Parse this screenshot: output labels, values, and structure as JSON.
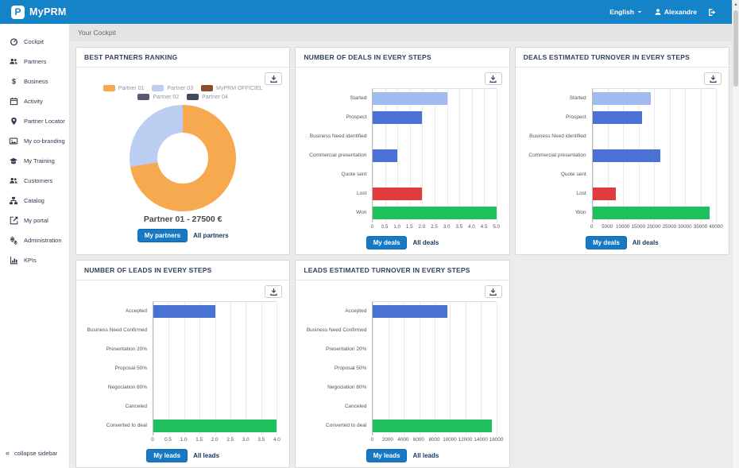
{
  "header": {
    "brand": "MyPRM",
    "language_label": "English",
    "user_name": "Alexandre"
  },
  "breadcrumb": "Your Cockpit",
  "sidebar": {
    "items": [
      {
        "icon": "gauge-icon",
        "label": "Cockpit"
      },
      {
        "icon": "users-icon",
        "label": "Partners"
      },
      {
        "icon": "dollar-icon",
        "label": "Business"
      },
      {
        "icon": "calendar-icon",
        "label": "Activity"
      },
      {
        "icon": "map-marker-icon",
        "label": "Partner Locator"
      },
      {
        "icon": "images-icon",
        "label": "My co-branding"
      },
      {
        "icon": "graduation-cap-icon",
        "label": "My Training"
      },
      {
        "icon": "users-icon",
        "label": "Customers"
      },
      {
        "icon": "sitemap-icon",
        "label": "Catalog"
      },
      {
        "icon": "external-link-icon",
        "label": "My portal"
      },
      {
        "icon": "gears-icon",
        "label": "Administration"
      },
      {
        "icon": "bar-chart-icon",
        "label": "KPIs"
      }
    ],
    "collapse_label": "collapse sidebar"
  },
  "chart_data": [
    {
      "type": "pie",
      "title": "BEST PARTNERS RANKING",
      "series": [
        {
          "name": "Partner 01",
          "value": 27500,
          "color": "#f6a94f"
        },
        {
          "name": "Partner 03",
          "value": 10500,
          "color": "#bccdf2"
        },
        {
          "name": "MyPRM OFFICIEL",
          "value": 0,
          "color": "#8c4e2a"
        },
        {
          "name": "Partner 02",
          "value": 0,
          "color": "#5d5873"
        },
        {
          "name": "Partner 04",
          "value": 0,
          "color": "#434a59"
        }
      ],
      "center_label": "Partner 01 - 27500 €",
      "legend_position": "top",
      "buttons": {
        "primary": "My partners",
        "secondary": "All partners"
      }
    },
    {
      "type": "bar",
      "title": "NUMBER OF DEALS IN EVERY STEPS",
      "categories": [
        "Started",
        "Prospect",
        "Business Need identified",
        "Commercial presentation",
        "Quote sent",
        "Lost",
        "Won"
      ],
      "values": [
        3,
        2,
        0,
        1,
        0,
        2,
        5
      ],
      "colors": [
        "#9fbbef",
        "#4a72d4",
        "#4a72d4",
        "#4a72d4",
        "#4a72d4",
        "#e23b3b",
        "#1fc05e"
      ],
      "xlim": [
        0,
        5
      ],
      "ticks": [
        "0",
        "0.5",
        "1.0",
        "1.5",
        "2.0",
        "2.5",
        "3.0",
        "3.5",
        "4.0",
        "4.5",
        "5.0"
      ],
      "grid": true,
      "buttons": {
        "primary": "My deals",
        "secondary": "All deals"
      }
    },
    {
      "type": "bar",
      "title": "DEALS ESTIMATED TURNOVER IN EVERY STEPS",
      "categories": [
        "Started",
        "Prospect",
        "Business Need identified",
        "Commercial presentation",
        "Quote sent",
        "Lost",
        "Won"
      ],
      "values": [
        19000,
        16000,
        0,
        22000,
        0,
        7500,
        38000
      ],
      "colors": [
        "#9fbbef",
        "#4a72d4",
        "#4a72d4",
        "#4a72d4",
        "#4a72d4",
        "#e23b3b",
        "#1fc05e"
      ],
      "xlim": [
        0,
        40000
      ],
      "ticks": [
        "0",
        "5000",
        "10000",
        "15000",
        "20000",
        "25000",
        "30000",
        "35000",
        "40000"
      ],
      "grid": true,
      "buttons": {
        "primary": "My deals",
        "secondary": "All deals"
      }
    },
    {
      "type": "bar",
      "title": "NUMBER OF LEADS IN EVERY STEPS",
      "categories": [
        "Accepted",
        "Business Need Confirmed",
        "Presentation 20%",
        "Proposal 50%",
        "Negociation 80%",
        "Canceled",
        "Converted to deal"
      ],
      "values": [
        2,
        0,
        0,
        0,
        0,
        0,
        4
      ],
      "colors": [
        "#4a72d4",
        "#4a72d4",
        "#4a72d4",
        "#4a72d4",
        "#4a72d4",
        "#e23b3b",
        "#1fc05e"
      ],
      "xlim": [
        0,
        4
      ],
      "ticks": [
        "0",
        "0.5",
        "1.0",
        "1.5",
        "2.0",
        "2.5",
        "3.0",
        "3.5",
        "4.0"
      ],
      "grid": true,
      "buttons": {
        "primary": "My leads",
        "secondary": "All leads"
      }
    },
    {
      "type": "bar",
      "title": "LEADS ESTIMATED TURNOVER IN EVERY STEPS",
      "categories": [
        "Accepted",
        "Business Need Confirmed",
        "Presentation 20%",
        "Proposal 50%",
        "Negociation 80%",
        "Canceled",
        "Converted to deal"
      ],
      "values": [
        9700,
        0,
        0,
        0,
        0,
        0,
        15400
      ],
      "colors": [
        "#4a72d4",
        "#4a72d4",
        "#4a72d4",
        "#4a72d4",
        "#4a72d4",
        "#e23b3b",
        "#1fc05e"
      ],
      "xlim": [
        0,
        16000
      ],
      "ticks": [
        "0",
        "2000",
        "4000",
        "6000",
        "8000",
        "10000",
        "12000",
        "14000",
        "16000"
      ],
      "grid": true,
      "buttons": {
        "primary": "My leads",
        "secondary": "All leads"
      }
    }
  ],
  "colors": {
    "topbar": "#1583c7",
    "primary_button": "#1779c4",
    "bar_light_blue": "#9fbbef",
    "bar_blue": "#4a72d4",
    "bar_red": "#e23b3b",
    "bar_green": "#1fc05e",
    "donut_orange": "#f6a94f",
    "donut_periwinkle": "#bccdf2"
  }
}
